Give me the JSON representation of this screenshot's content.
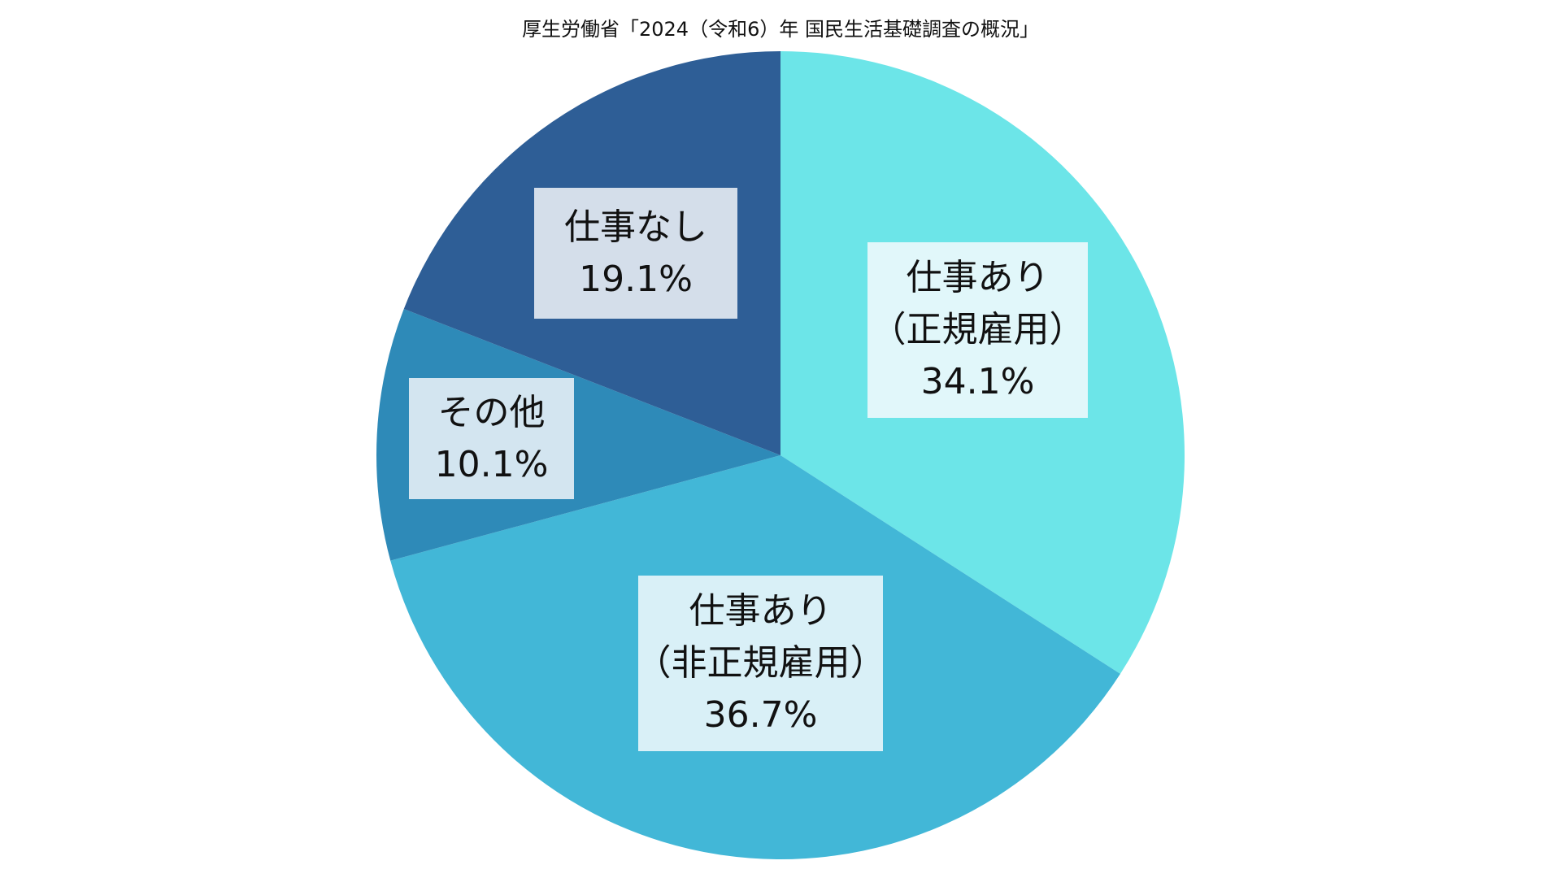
{
  "chart_data": {
    "type": "pie",
    "title": "厚生労働省「2024（令和6）年 国民生活基礎調査の概況」",
    "start_angle": "12 o'clock, clockwise",
    "slices": [
      {
        "label": "仕事あり（正規雇用）",
        "label_line1": "仕事あり",
        "label_line2": "（正規雇用）",
        "value": 34.1,
        "value_text": "34.1%",
        "color": "#6CE5E8",
        "box_color": "#E1F7FA"
      },
      {
        "label": "仕事あり（非正規雇用）",
        "label_line1": "仕事あり",
        "label_line2": "（非正規雇用）",
        "value": 36.7,
        "value_text": "36.7%",
        "color": "#42B7D7",
        "box_color": "#D9F0F7"
      },
      {
        "label": "その他",
        "label_line1": "その他",
        "value": 10.1,
        "value_text": "10.1%",
        "color": "#2E8AB8",
        "box_color": "#D3E5F0"
      },
      {
        "label": "仕事なし",
        "label_line1": "仕事なし",
        "value": 19.1,
        "value_text": "19.1%",
        "color": "#2E5E96",
        "box_color": "#D4DEEA"
      }
    ],
    "unit": "%",
    "legend": "none (data labels inside slices)"
  }
}
